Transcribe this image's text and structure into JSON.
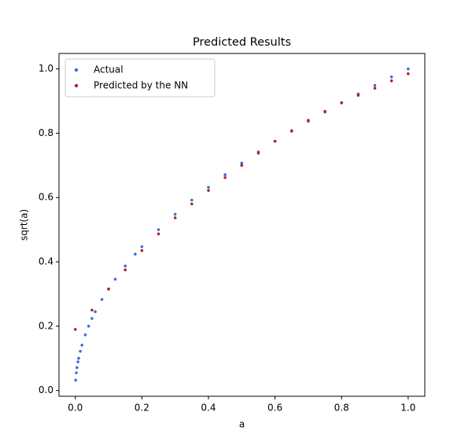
{
  "chart_data": {
    "type": "scatter",
    "title": "Predicted Results",
    "x_label": "a",
    "y_label": "sqrt(a)",
    "xlim": [
      -0.049,
      1.05
    ],
    "ylim": [
      -0.018,
      1.048
    ],
    "xticks": [
      {
        "value": 0,
        "label": "0.0"
      },
      0.2,
      0.4,
      0.6,
      0.8,
      {
        "value": 1,
        "label": "1.0"
      }
    ],
    "yticks": [
      {
        "value": 0,
        "label": "0.0"
      },
      0.2,
      0.4,
      0.6,
      0.8,
      {
        "value": 1,
        "label": "1.0"
      }
    ],
    "grid": false,
    "legend": "upper-left",
    "series": [
      {
        "name": "Actual",
        "color": "#4169e1",
        "x": [
          0.001,
          0.003,
          0.005,
          0.008,
          0.01,
          0.015,
          0.02,
          0.03,
          0.04,
          0.05,
          0.06,
          0.08,
          0.1,
          0.12,
          0.15,
          0.18,
          0.2,
          0.25,
          0.3,
          0.35,
          0.4,
          0.45,
          0.5,
          0.55,
          0.6,
          0.65,
          0.7,
          0.75,
          0.8,
          0.85,
          0.9,
          0.95,
          1.0
        ],
        "values": [
          0.032,
          0.055,
          0.071,
          0.089,
          0.1,
          0.122,
          0.141,
          0.173,
          0.2,
          0.224,
          0.245,
          0.283,
          0.316,
          0.346,
          0.387,
          0.424,
          0.447,
          0.5,
          0.548,
          0.592,
          0.632,
          0.671,
          0.707,
          0.742,
          0.775,
          0.806,
          0.837,
          0.866,
          0.894,
          0.922,
          0.949,
          0.975,
          1.0
        ]
      },
      {
        "name": "Predicted by the NN",
        "color": "#b22222",
        "x": [
          0.0,
          0.05,
          0.1,
          0.15,
          0.2,
          0.25,
          0.3,
          0.35,
          0.4,
          0.45,
          0.5,
          0.55,
          0.6,
          0.65,
          0.7,
          0.75,
          0.8,
          0.85,
          0.9,
          0.95,
          1.0
        ],
        "values": [
          0.19,
          0.25,
          0.315,
          0.375,
          0.435,
          0.487,
          0.537,
          0.58,
          0.622,
          0.662,
          0.7,
          0.738,
          0.775,
          0.808,
          0.84,
          0.868,
          0.895,
          0.918,
          0.94,
          0.963,
          0.985
        ]
      }
    ]
  }
}
